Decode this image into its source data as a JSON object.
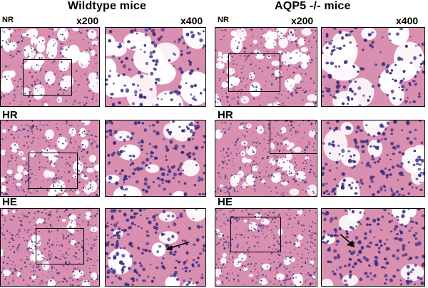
{
  "figure": {
    "groups": [
      {
        "title": "Wildtype mice",
        "mag_low": "x200",
        "mag_high": "x400",
        "rows": [
          {
            "condition": "NR"
          },
          {
            "condition": "HR"
          },
          {
            "condition": "HE",
            "arrow": true
          }
        ]
      },
      {
        "title": "AQP5 -/- mice",
        "mag_low": "x200",
        "mag_high": "x400",
        "rows": [
          {
            "condition": "NR"
          },
          {
            "condition": "HR"
          },
          {
            "condition": "HE",
            "arrow": true
          }
        ]
      }
    ],
    "colors": {
      "background_tissue": "#f3dce6",
      "parenchyma": "#d98fb0",
      "nuclei": "#3b2e82",
      "alveolar_space": "#ffffff",
      "border": "#000000"
    }
  }
}
